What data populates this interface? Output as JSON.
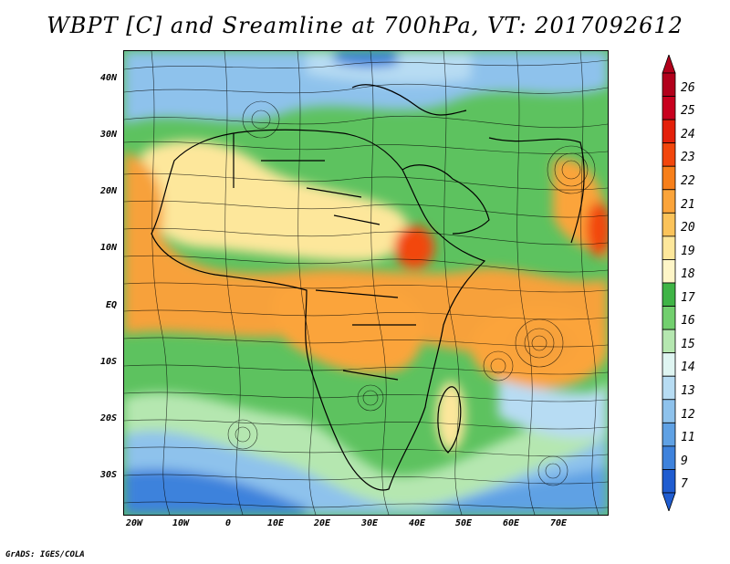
{
  "title": "WBPT [C] and Sreamline at 700hPa, VT: 2017092612",
  "credit": "GrADS: IGES/COLA",
  "y_axis_labels": [
    "40N",
    "30N",
    "20N",
    "10N",
    "EQ",
    "10S",
    "20S",
    "30S"
  ],
  "x_axis_labels": [
    "20W",
    "10W",
    "0",
    "10E",
    "20E",
    "30E",
    "40E",
    "50E",
    "60E",
    "70E"
  ],
  "colorbar": {
    "labels": [
      "26",
      "25",
      "24",
      "23",
      "22",
      "21",
      "20",
      "19",
      "18",
      "17",
      "16",
      "15",
      "14",
      "13",
      "12",
      "11",
      "9",
      "7"
    ],
    "colors": [
      "#b2001b",
      "#c8001e",
      "#e4200a",
      "#f2460c",
      "#f77f1a",
      "#fba43a",
      "#fbc35a",
      "#fde79b",
      "#fef5c7",
      "#3fb446",
      "#72cf6e",
      "#b5e7b0",
      "#dff5f2",
      "#b7dcf3",
      "#8ec2ec",
      "#5fa1e4",
      "#3e82dc",
      "#1f5cd0"
    ]
  },
  "colors": {
    "land_green": "#5dc25f",
    "warm_orange": "#f7a13a",
    "sea_blue": "#5fa1e4",
    "streamline": "#000000"
  }
}
